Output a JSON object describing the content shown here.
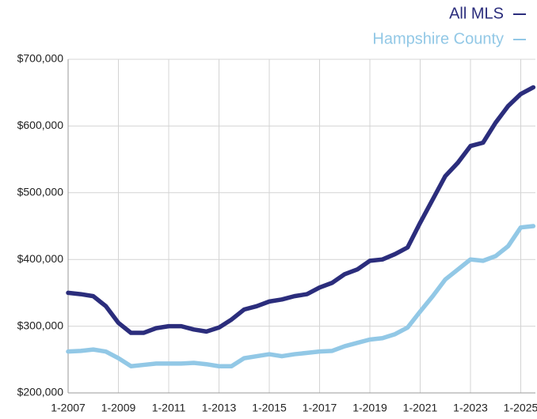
{
  "chart_data": {
    "type": "line",
    "x": [
      "2007-01",
      "2007-07",
      "2008-01",
      "2008-07",
      "2009-01",
      "2009-07",
      "2010-01",
      "2010-07",
      "2011-01",
      "2011-07",
      "2012-01",
      "2012-07",
      "2013-01",
      "2013-07",
      "2014-01",
      "2014-07",
      "2015-01",
      "2015-07",
      "2016-01",
      "2016-07",
      "2017-01",
      "2017-07",
      "2018-01",
      "2018-07",
      "2019-01",
      "2019-07",
      "2020-01",
      "2020-07",
      "2021-01",
      "2021-07",
      "2022-01",
      "2022-07",
      "2023-01",
      "2023-07",
      "2024-01",
      "2024-07",
      "2025-01",
      "2025-07"
    ],
    "series": [
      {
        "name": "All MLS",
        "color": "#2b2d7c",
        "values": [
          350000,
          348000,
          345000,
          330000,
          305000,
          290000,
          290000,
          297000,
          300000,
          300000,
          295000,
          292000,
          298000,
          310000,
          325000,
          330000,
          337000,
          340000,
          345000,
          348000,
          358000,
          365000,
          378000,
          385000,
          398000,
          400000,
          408000,
          418000,
          455000,
          490000,
          525000,
          545000,
          570000,
          575000,
          605000,
          630000,
          648000,
          658000
        ]
      },
      {
        "name": "Hampshire County",
        "color": "#92c8e6",
        "values": [
          262000,
          263000,
          265000,
          262000,
          252000,
          240000,
          242000,
          244000,
          244000,
          244000,
          245000,
          243000,
          240000,
          240000,
          252000,
          255000,
          258000,
          255000,
          258000,
          260000,
          262000,
          263000,
          270000,
          275000,
          280000,
          282000,
          288000,
          298000,
          322000,
          345000,
          370000,
          385000,
          400000,
          398000,
          405000,
          420000,
          448000,
          450000
        ]
      }
    ],
    "xlim": [
      "2007-01",
      "2025-08"
    ],
    "xticks": [
      {
        "value": "2007-01",
        "label": "1-2007"
      },
      {
        "value": "2009-01",
        "label": "1-2009"
      },
      {
        "value": "2011-01",
        "label": "1-2011"
      },
      {
        "value": "2013-01",
        "label": "1-2013"
      },
      {
        "value": "2015-01",
        "label": "1-2015"
      },
      {
        "value": "2017-01",
        "label": "1-2017"
      },
      {
        "value": "2019-01",
        "label": "1-2019"
      },
      {
        "value": "2021-01",
        "label": "1-2021"
      },
      {
        "value": "2023-01",
        "label": "1-2023"
      },
      {
        "value": "2025-01",
        "label": "1-2025"
      }
    ],
    "ylim": [
      200000,
      700000
    ],
    "yticks": [
      {
        "value": 200000,
        "label": "$200,000"
      },
      {
        "value": 300000,
        "label": "$300,000"
      },
      {
        "value": 400000,
        "label": "$400,000"
      },
      {
        "value": 500000,
        "label": "$500,000"
      },
      {
        "value": 600000,
        "label": "$600,000"
      },
      {
        "value": 700000,
        "label": "$700,000"
      }
    ],
    "grid": true
  }
}
